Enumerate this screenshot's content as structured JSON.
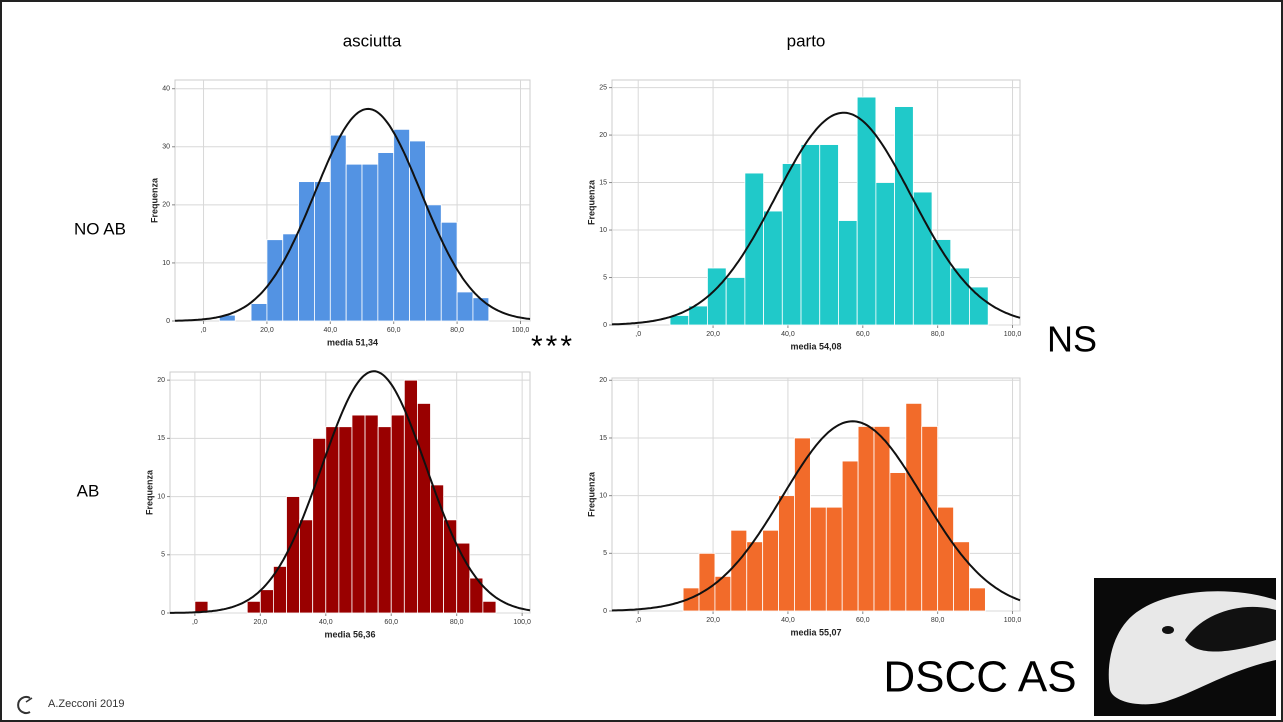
{
  "slide": {
    "column_titles": [
      "asciutta",
      "parto"
    ],
    "row_labels": [
      "NO AB",
      "AB"
    ],
    "significance": [
      "***",
      "NS"
    ],
    "badge": "DSCC AS",
    "footer": "A.Zecconi 2019"
  },
  "chart_data": [
    {
      "type": "histogram",
      "xlabel": "media 51,34",
      "ylabel": "Frequenza",
      "color": "#5393e3",
      "normal_curve": true,
      "grid": true,
      "bins": [
        5,
        10,
        15,
        20,
        25,
        30,
        35,
        40,
        45,
        50,
        55,
        60,
        65,
        70,
        75,
        80,
        85,
        90
      ],
      "values": [
        1,
        0,
        3,
        14,
        15,
        24,
        24,
        32,
        27,
        27,
        29,
        33,
        31,
        20,
        17,
        5,
        4
      ],
      "xlim": [
        -9,
        103
      ],
      "ylim": [
        0,
        41.5
      ],
      "xticks": [
        {
          "value": 0,
          "label": ",0"
        },
        {
          "value": 20,
          "label": "20,0"
        },
        {
          "value": 40,
          "label": "40,0"
        },
        {
          "value": 60,
          "label": "60,0"
        },
        {
          "value": 80,
          "label": "80,0"
        },
        {
          "value": 100,
          "label": "100,0"
        }
      ],
      "yticks": [
        0,
        10,
        20,
        30,
        40
      ]
    },
    {
      "type": "histogram",
      "xlabel": "media 54,08",
      "ylabel": "Frequenza",
      "color": "#20c9c9",
      "normal_curve": true,
      "grid": true,
      "bins": [
        8.5,
        13.5,
        18.5,
        23.5,
        28.5,
        33.5,
        38.5,
        43.5,
        48.5,
        53.5,
        58.5,
        63.5,
        68.5,
        73.5,
        78.5,
        83.5,
        88.5,
        93.5
      ],
      "values": [
        1,
        2,
        6,
        5,
        16,
        12,
        17,
        19,
        19,
        11,
        24,
        15,
        23,
        14,
        9,
        6,
        4
      ],
      "xlim": [
        -7,
        102
      ],
      "ylim": [
        0,
        25.8
      ],
      "xticks": [
        {
          "value": 0,
          "label": ",0"
        },
        {
          "value": 20,
          "label": "20,0"
        },
        {
          "value": 40,
          "label": "40,0"
        },
        {
          "value": 60,
          "label": "60,0"
        },
        {
          "value": 80,
          "label": "80,0"
        },
        {
          "value": 100,
          "label": "100,0"
        }
      ],
      "yticks": [
        0,
        5,
        10,
        15,
        20,
        25
      ]
    },
    {
      "type": "histogram",
      "xlabel": "media 56,36",
      "ylabel": "Frequenza",
      "color": "#990000",
      "normal_curve": true,
      "grid": true,
      "bins": [
        0,
        4,
        8,
        12,
        16,
        20,
        24,
        28,
        32,
        36,
        40,
        44,
        48,
        52,
        56,
        60,
        64,
        68,
        72,
        76,
        80,
        84,
        88,
        92
      ],
      "values": [
        1,
        0,
        0,
        0,
        1,
        2,
        4,
        10,
        8,
        15,
        16,
        16,
        17,
        17,
        16,
        17,
        20,
        18,
        11,
        8,
        6,
        3,
        1
      ],
      "xlim": [
        -7.6,
        102.4
      ],
      "ylim": [
        0,
        20.7
      ],
      "xticks": [
        {
          "value": 0,
          "label": ",0"
        },
        {
          "value": 20,
          "label": "20,0"
        },
        {
          "value": 40,
          "label": "40,0"
        },
        {
          "value": 60,
          "label": "60,0"
        },
        {
          "value": 80,
          "label": "80,0"
        },
        {
          "value": 100,
          "label": "100,0"
        }
      ],
      "yticks": [
        0,
        5,
        10,
        15,
        20
      ]
    },
    {
      "type": "histogram",
      "xlabel": "media 55,07",
      "ylabel": "Frequenza",
      "color": "#f26b2a",
      "normal_curve": true,
      "grid": true,
      "bins": [
        12,
        16.25,
        20.5,
        24.75,
        29,
        33.25,
        37.5,
        41.75,
        46,
        50.25,
        54.5,
        58.75,
        63,
        67.25,
        71.5,
        75.75,
        80,
        84.25,
        88.5,
        92.75
      ],
      "values": [
        2,
        5,
        3,
        7,
        6,
        7,
        10,
        15,
        9,
        9,
        13,
        16,
        16,
        12,
        18,
        16,
        9,
        6,
        2
      ],
      "xlim": [
        -7,
        102
      ],
      "ylim": [
        0,
        20.2
      ],
      "xticks": [
        {
          "value": 0,
          "label": ",0"
        },
        {
          "value": 20,
          "label": "20,0"
        },
        {
          "value": 40,
          "label": "40,0"
        },
        {
          "value": 60,
          "label": "60,0"
        },
        {
          "value": 80,
          "label": "80,0"
        },
        {
          "value": 100,
          "label": "100,0"
        }
      ],
      "yticks": [
        0,
        5,
        10,
        15,
        20
      ]
    }
  ]
}
